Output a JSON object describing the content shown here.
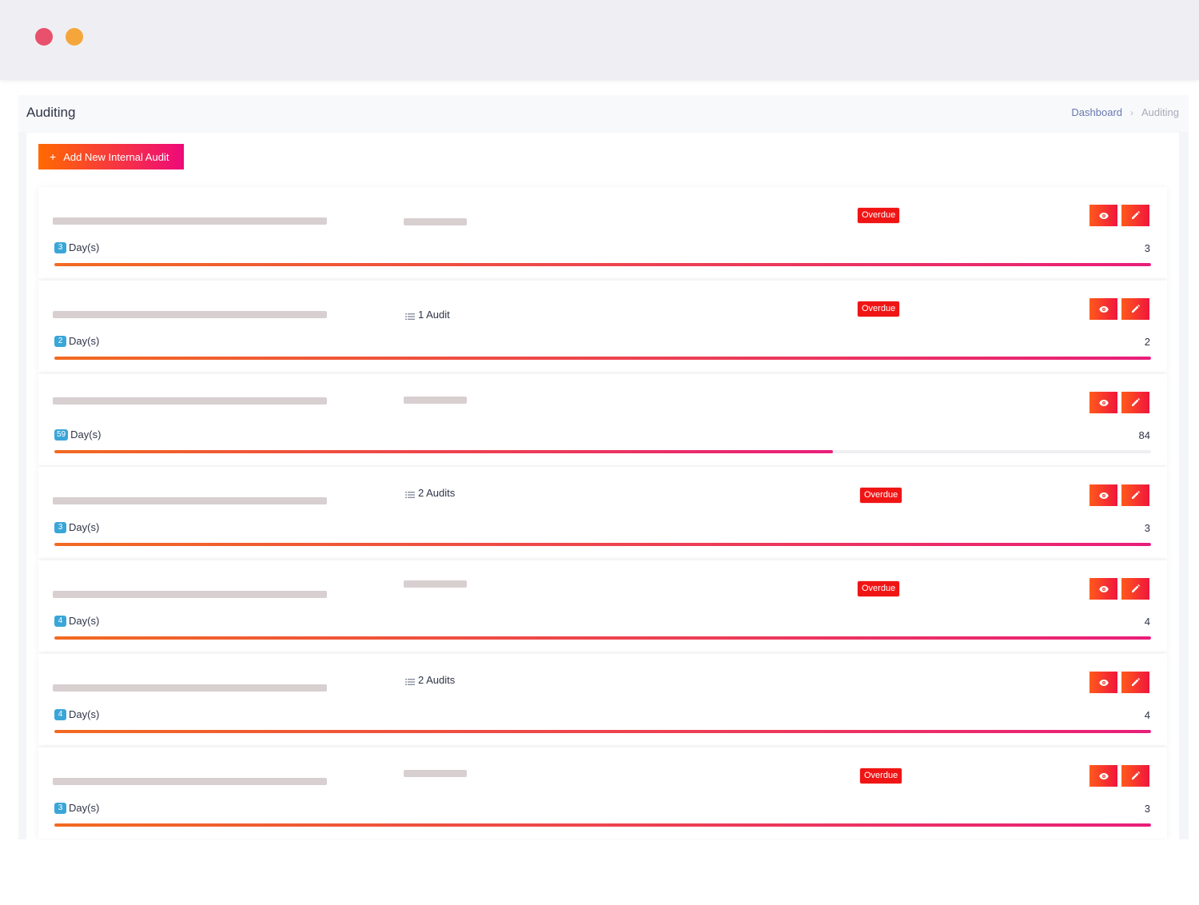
{
  "colors": {
    "accent_start": "#ff6a00",
    "accent_end": "#ee0979",
    "overdue": "#f01515",
    "days_badge": "#3aa6d8",
    "dot_red": "#e8506b",
    "dot_orange": "#f5a63a"
  },
  "header": {
    "title": "Auditing",
    "breadcrumb": {
      "home": "Dashboard",
      "separator": "›",
      "current": "Auditing"
    }
  },
  "toolbar": {
    "add_icon": "+",
    "add_label": "Add New Internal Audit"
  },
  "audits": [
    {
      "audit_count": null,
      "status": "Overdue",
      "days_elapsed": "3",
      "days_label": "Day(s)",
      "days_total": "3",
      "progress": 1.0,
      "actions": [
        "eye-icon",
        "pencil-icon"
      ]
    },
    {
      "audit_count": "1 Audit",
      "status": "Overdue",
      "days_elapsed": "2",
      "days_label": "Day(s)",
      "days_total": "2",
      "progress": 1.0,
      "actions": [
        "eye-icon",
        "pencil-icon"
      ]
    },
    {
      "audit_count": null,
      "status": null,
      "days_elapsed": "59",
      "days_label": "Day(s)",
      "days_total": "84",
      "progress": 0.71,
      "actions": [
        "eye-icon",
        "pencil-icon"
      ]
    },
    {
      "audit_count": "2 Audits",
      "status": "Overdue",
      "days_elapsed": "3",
      "days_label": "Day(s)",
      "days_total": "3",
      "progress": 1.0,
      "actions": [
        "eye-icon",
        "pencil-icon"
      ]
    },
    {
      "audit_count": null,
      "status": "Overdue",
      "days_elapsed": "4",
      "days_label": "Day(s)",
      "days_total": "4",
      "progress": 1.0,
      "actions": [
        "eye-icon",
        "pencil-icon"
      ]
    },
    {
      "audit_count": "2 Audits",
      "status": null,
      "days_elapsed": "4",
      "days_label": "Day(s)",
      "days_total": "4",
      "progress": 1.0,
      "actions": [
        "eye-icon",
        "pencil-icon"
      ]
    },
    {
      "audit_count": null,
      "status": "Overdue",
      "days_elapsed": "3",
      "days_label": "Day(s)",
      "days_total": "3",
      "progress": 1.0,
      "actions": [
        "eye-icon",
        "pencil-icon"
      ]
    }
  ]
}
